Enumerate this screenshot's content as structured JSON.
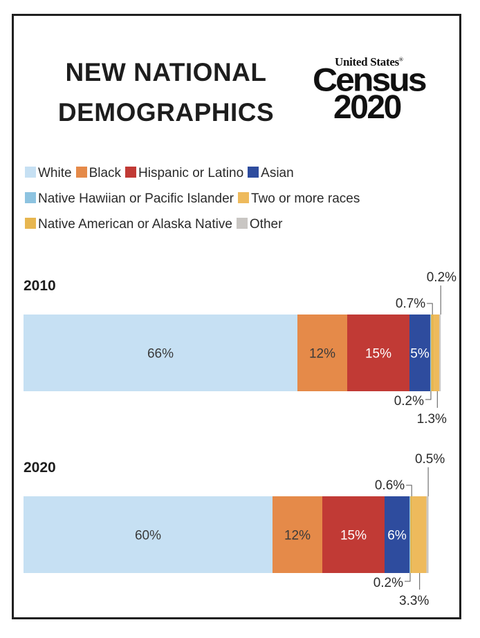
{
  "title": {
    "line1": "NEW NATIONAL",
    "line2": "DEMOGRAPHICS"
  },
  "logo": {
    "top": "United States",
    "registered": "®",
    "middle": "Census",
    "bottom": "2020"
  },
  "colors": {
    "White": "#c6e0f3",
    "Black": "#e58a49",
    "Hispanic or Latino": "#c13a35",
    "Asian": "#2e4c9e",
    "Native Hawiian or Pacific Islander": "#8dc3e0",
    "Two or more races": "#eeba5c",
    "Native American or Alaska Native": "#e7b650",
    "Other": "#c9c6c3"
  },
  "legend": [
    [
      "White",
      "Black",
      "Hispanic or Latino",
      "Asian"
    ],
    [
      "Native Hawiian or Pacific Islander",
      "Two or more races"
    ],
    [
      "Native American or Alaska Native",
      "Other"
    ]
  ],
  "chart_data": {
    "type": "bar",
    "stacked": true,
    "orientation": "horizontal",
    "unit": "%",
    "categories": [
      "2010",
      "2020"
    ],
    "series": [
      {
        "name": "White",
        "values": [
          66,
          60
        ],
        "labels": [
          "66%",
          "60%"
        ]
      },
      {
        "name": "Black",
        "values": [
          12,
          12
        ],
        "labels": [
          "12%",
          "12%"
        ]
      },
      {
        "name": "Hispanic or Latino",
        "values": [
          15,
          15
        ],
        "labels": [
          "15%",
          "15%"
        ]
      },
      {
        "name": "Asian",
        "values": [
          5,
          6
        ],
        "labels": [
          "5%",
          "6%"
        ]
      },
      {
        "name": "Native Hawiian or Pacific Islander",
        "values": [
          0.2,
          0.2
        ],
        "labels": [
          "0.2%",
          "0.2%"
        ]
      },
      {
        "name": "Native American or Alaska Native",
        "values": [
          0.7,
          0.6
        ],
        "labels": [
          "0.7%",
          "0.6%"
        ]
      },
      {
        "name": "Two or more races",
        "values": [
          1.3,
          3.3
        ],
        "labels": [
          "1.3%",
          "3.3%"
        ]
      },
      {
        "name": "Other",
        "values": [
          0.2,
          0.5
        ],
        "labels": [
          "0.2%",
          "0.5%"
        ]
      }
    ]
  }
}
